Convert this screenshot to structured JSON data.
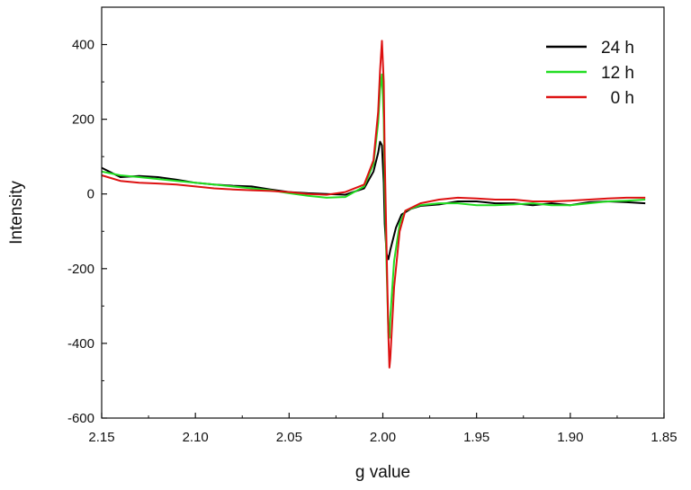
{
  "chart_data": {
    "type": "line",
    "title": "",
    "xlabel": "g value",
    "ylabel": "Intensity",
    "xlim": [
      2.15,
      1.85
    ],
    "ylim": [
      -600,
      500
    ],
    "x_reversed": true,
    "grid": false,
    "legend_position": "top-right",
    "x_ticks": [
      "2.15",
      "2.10",
      "2.05",
      "2.00",
      "1.95",
      "1.90",
      "1.85"
    ],
    "y_ticks": [
      "400",
      "200",
      "0",
      "-200",
      "-400",
      "-600"
    ],
    "series": [
      {
        "name": "24 h",
        "color": "#000000",
        "points": [
          [
            2.15,
            70
          ],
          [
            2.14,
            45
          ],
          [
            2.13,
            48
          ],
          [
            2.12,
            45
          ],
          [
            2.11,
            38
          ],
          [
            2.1,
            30
          ],
          [
            2.09,
            25
          ],
          [
            2.08,
            22
          ],
          [
            2.07,
            20
          ],
          [
            2.06,
            12
          ],
          [
            2.05,
            5
          ],
          [
            2.04,
            2
          ],
          [
            2.03,
            0
          ],
          [
            2.02,
            -2
          ],
          [
            2.01,
            15
          ],
          [
            2.005,
            60
          ],
          [
            2.0025,
            110
          ],
          [
            2.0015,
            140
          ],
          [
            2.0005,
            130
          ],
          [
            1.9995,
            30
          ],
          [
            1.999,
            -80
          ],
          [
            1.998,
            -160
          ],
          [
            1.997,
            -175
          ],
          [
            1.996,
            -150
          ],
          [
            1.993,
            -90
          ],
          [
            1.99,
            -55
          ],
          [
            1.985,
            -40
          ],
          [
            1.98,
            -32
          ],
          [
            1.97,
            -28
          ],
          [
            1.96,
            -20
          ],
          [
            1.95,
            -20
          ],
          [
            1.94,
            -25
          ],
          [
            1.93,
            -25
          ],
          [
            1.92,
            -30
          ],
          [
            1.91,
            -25
          ],
          [
            1.9,
            -30
          ],
          [
            1.89,
            -22
          ],
          [
            1.88,
            -20
          ],
          [
            1.87,
            -22
          ],
          [
            1.86,
            -25
          ]
        ]
      },
      {
        "name": "12 h",
        "color": "#22dd22",
        "points": [
          [
            2.15,
            60
          ],
          [
            2.14,
            50
          ],
          [
            2.13,
            45
          ],
          [
            2.12,
            40
          ],
          [
            2.11,
            35
          ],
          [
            2.1,
            30
          ],
          [
            2.09,
            25
          ],
          [
            2.08,
            20
          ],
          [
            2.07,
            15
          ],
          [
            2.06,
            10
          ],
          [
            2.05,
            2
          ],
          [
            2.04,
            -5
          ],
          [
            2.03,
            -10
          ],
          [
            2.02,
            -8
          ],
          [
            2.01,
            20
          ],
          [
            2.005,
            80
          ],
          [
            2.0025,
            190
          ],
          [
            2.0015,
            280
          ],
          [
            2.0005,
            320
          ],
          [
            1.9995,
            200
          ],
          [
            1.999,
            20
          ],
          [
            1.998,
            -200
          ],
          [
            1.997,
            -370
          ],
          [
            1.9965,
            -385
          ],
          [
            1.996,
            -330
          ],
          [
            1.994,
            -180
          ],
          [
            1.991,
            -80
          ],
          [
            1.988,
            -45
          ],
          [
            1.98,
            -30
          ],
          [
            1.97,
            -25
          ],
          [
            1.96,
            -25
          ],
          [
            1.95,
            -30
          ],
          [
            1.94,
            -30
          ],
          [
            1.93,
            -28
          ],
          [
            1.92,
            -25
          ],
          [
            1.91,
            -30
          ],
          [
            1.9,
            -30
          ],
          [
            1.89,
            -25
          ],
          [
            1.88,
            -20
          ],
          [
            1.87,
            -18
          ],
          [
            1.86,
            -15
          ]
        ]
      },
      {
        "name": "0 h",
        "color": "#dd1111",
        "points": [
          [
            2.15,
            50
          ],
          [
            2.14,
            35
          ],
          [
            2.13,
            30
          ],
          [
            2.12,
            28
          ],
          [
            2.11,
            25
          ],
          [
            2.1,
            20
          ],
          [
            2.09,
            15
          ],
          [
            2.08,
            12
          ],
          [
            2.07,
            10
          ],
          [
            2.06,
            8
          ],
          [
            2.05,
            5
          ],
          [
            2.04,
            0
          ],
          [
            2.03,
            -2
          ],
          [
            2.02,
            5
          ],
          [
            2.01,
            25
          ],
          [
            2.005,
            90
          ],
          [
            2.0025,
            220
          ],
          [
            2.0015,
            330
          ],
          [
            2.0005,
            410
          ],
          [
            1.9995,
            300
          ],
          [
            1.999,
            100
          ],
          [
            1.998,
            -150
          ],
          [
            1.997,
            -380
          ],
          [
            1.9965,
            -465
          ],
          [
            1.996,
            -440
          ],
          [
            1.994,
            -250
          ],
          [
            1.991,
            -100
          ],
          [
            1.988,
            -45
          ],
          [
            1.98,
            -25
          ],
          [
            1.97,
            -15
          ],
          [
            1.96,
            -10
          ],
          [
            1.95,
            -12
          ],
          [
            1.94,
            -15
          ],
          [
            1.93,
            -15
          ],
          [
            1.92,
            -20
          ],
          [
            1.91,
            -20
          ],
          [
            1.9,
            -18
          ],
          [
            1.89,
            -15
          ],
          [
            1.88,
            -12
          ],
          [
            1.87,
            -10
          ],
          [
            1.86,
            -10
          ]
        ]
      }
    ]
  }
}
